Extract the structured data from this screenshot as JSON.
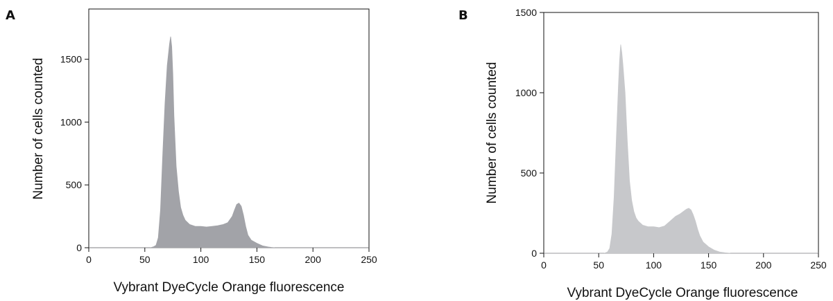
{
  "chart_data": [
    {
      "panel": "A",
      "type": "area",
      "xlabel": "Vybrant DyeCycle Orange fluorescence",
      "ylabel": "Number of cells counted",
      "xlim": [
        0,
        250
      ],
      "ylim": [
        0,
        1900
      ],
      "xticks": [
        0,
        50,
        100,
        150,
        200,
        250
      ],
      "yticks": [
        0,
        500,
        1000,
        1500
      ],
      "fill_color": "#a2a3a8",
      "grid": false,
      "series": [
        {
          "x": [
            0,
            55,
            58,
            60,
            62,
            64,
            66,
            68,
            70,
            72,
            73,
            74,
            75,
            76,
            78,
            80,
            82,
            84,
            86,
            90,
            95,
            100,
            105,
            110,
            115,
            120,
            124,
            128,
            130,
            132,
            134,
            136,
            138,
            140,
            142,
            145,
            150,
            155,
            160,
            163,
            166,
            170,
            250
          ],
          "y": [
            0,
            0,
            8,
            20,
            80,
            300,
            750,
            1150,
            1450,
            1620,
            1680,
            1600,
            1380,
            1050,
            650,
            450,
            320,
            260,
            220,
            185,
            170,
            170,
            165,
            170,
            175,
            185,
            200,
            250,
            300,
            345,
            355,
            330,
            260,
            170,
            100,
            60,
            35,
            15,
            6,
            3,
            0,
            0,
            0
          ]
        }
      ]
    },
    {
      "panel": "B",
      "type": "area",
      "xlabel": "Vybrant DyeCycle Orange fluorescence",
      "ylabel": "Number of cells counted",
      "xlim": [
        0,
        250
      ],
      "ylim": [
        0,
        1500
      ],
      "xticks": [
        0,
        50,
        100,
        150,
        200,
        250
      ],
      "yticks": [
        0,
        500,
        1000,
        1500
      ],
      "fill_color": "#c7c8cb",
      "grid": false,
      "series": [
        {
          "x": [
            0,
            55,
            58,
            60,
            62,
            64,
            66,
            68,
            69,
            70,
            71,
            72,
            74,
            76,
            78,
            80,
            82,
            84,
            86,
            90,
            95,
            100,
            105,
            110,
            115,
            120,
            124,
            128,
            130,
            132,
            134,
            136,
            138,
            140,
            142,
            145,
            150,
            155,
            160,
            165,
            170,
            250
          ],
          "y": [
            0,
            0,
            8,
            30,
            120,
            350,
            700,
            1050,
            1200,
            1300,
            1250,
            1180,
            1000,
            700,
            450,
            330,
            260,
            220,
            200,
            175,
            165,
            165,
            160,
            170,
            200,
            230,
            245,
            265,
            275,
            280,
            270,
            240,
            200,
            150,
            110,
            70,
            40,
            20,
            8,
            3,
            0,
            0
          ]
        }
      ]
    }
  ]
}
